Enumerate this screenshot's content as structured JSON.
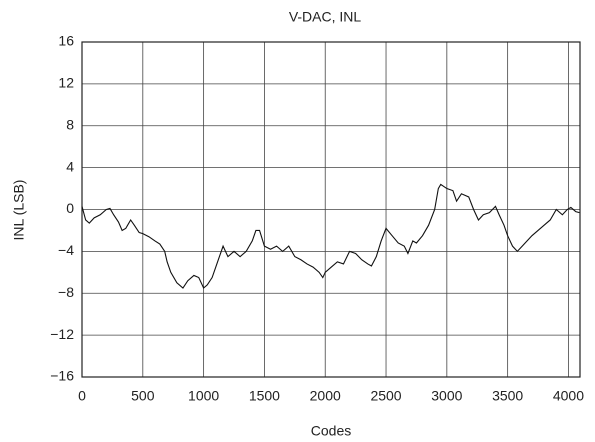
{
  "chart_data": {
    "type": "line",
    "title": "V-DAC, INL",
    "xlabel": "Codes",
    "ylabel": "INL (LSB)",
    "x": [
      0,
      30,
      60,
      100,
      150,
      200,
      230,
      260,
      300,
      330,
      360,
      400,
      430,
      470,
      500,
      550,
      600,
      640,
      680,
      700,
      730,
      780,
      830,
      870,
      920,
      960,
      1000,
      1030,
      1070,
      1100,
      1130,
      1160,
      1200,
      1250,
      1300,
      1350,
      1400,
      1430,
      1460,
      1500,
      1550,
      1600,
      1650,
      1700,
      1750,
      1800,
      1850,
      1900,
      1950,
      1980,
      2000,
      2050,
      2100,
      2150,
      2200,
      2250,
      2300,
      2350,
      2380,
      2420,
      2460,
      2500,
      2550,
      2600,
      2650,
      2680,
      2720,
      2750,
      2800,
      2850,
      2900,
      2930,
      2950,
      3000,
      3050,
      3080,
      3120,
      3180,
      3220,
      3260,
      3300,
      3350,
      3400,
      3430,
      3470,
      3500,
      3540,
      3580,
      3620,
      3660,
      3700,
      3750,
      3800,
      3850,
      3900,
      3950,
      3990,
      4020,
      4060,
      4090
    ],
    "series": [
      {
        "name": "INL",
        "color": "#111111",
        "values": [
          0.3,
          -1,
          -1.3,
          -0.8,
          -0.5,
          0,
          0.1,
          -0.5,
          -1.2,
          -2,
          -1.8,
          -1,
          -1.5,
          -2.2,
          -2.3,
          -2.6,
          -3,
          -3.3,
          -4,
          -5,
          -6,
          -7,
          -7.5,
          -6.8,
          -6.3,
          -6.5,
          -7.5,
          -7.2,
          -6.5,
          -5.5,
          -4.5,
          -3.5,
          -4.5,
          -4,
          -4.5,
          -4,
          -3,
          -2,
          -2,
          -3.5,
          -3.8,
          -3.5,
          -4,
          -3.5,
          -4.5,
          -4.8,
          -5.2,
          -5.5,
          -6,
          -6.5,
          -6,
          -5.5,
          -5,
          -5.2,
          -4,
          -4.2,
          -4.8,
          -5.2,
          -5.4,
          -4.5,
          -3,
          -1.8,
          -2.5,
          -3.2,
          -3.5,
          -4.2,
          -3,
          -3.2,
          -2.5,
          -1.5,
          0,
          2,
          2.4,
          2,
          1.8,
          0.8,
          1.5,
          1.2,
          0,
          -1,
          -0.5,
          -0.3,
          0.3,
          -0.5,
          -1.5,
          -2.5,
          -3.5,
          -4,
          -3.5,
          -3,
          -2.5,
          -2,
          -1.5,
          -1,
          0,
          -0.5,
          0,
          0.2,
          -0.2,
          -0.3
        ]
      }
    ],
    "xlim": [
      0,
      4095
    ],
    "xticks": [
      0,
      500,
      1000,
      1500,
      2000,
      2500,
      3000,
      3500,
      4000
    ],
    "ylim": [
      -16,
      16
    ],
    "yticks": [
      {
        "value": -16,
        "label": "−16"
      },
      {
        "value": -12,
        "label": "−12"
      },
      {
        "value": -8,
        "label": "−8"
      },
      {
        "value": -4,
        "label": "−4"
      },
      0,
      4,
      8,
      12,
      16
    ],
    "grid": true
  }
}
